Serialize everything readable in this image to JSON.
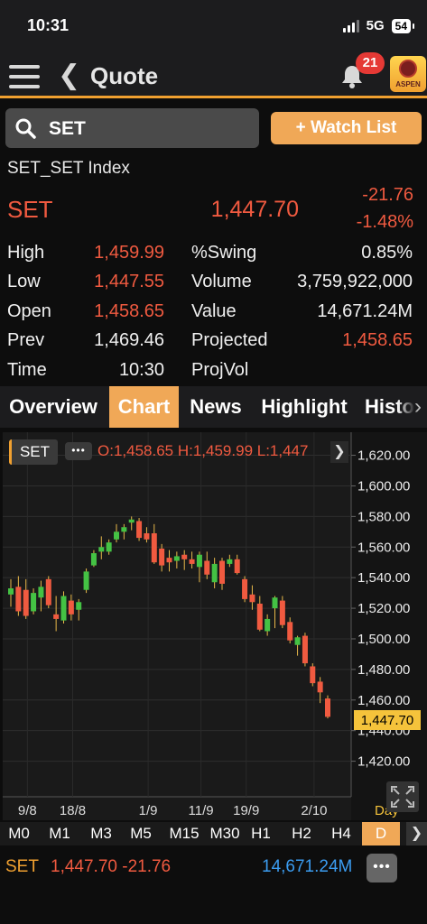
{
  "status_bar": {
    "time": "10:31",
    "network": "5G",
    "battery": "54"
  },
  "nav": {
    "title": "Quote",
    "notification_count": "21",
    "logo_text": "ASPEN"
  },
  "search": {
    "value": "SET"
  },
  "watchlist_label": "+ Watch List",
  "quote": {
    "index_name": "SET_SET Index",
    "symbol": "SET",
    "last": "1,447.70",
    "change": "-21.76",
    "change_pct": "-1.48%",
    "high_label": "High",
    "high": "1,459.99",
    "low_label": "Low",
    "low": "1,447.55",
    "open_label": "Open",
    "open": "1,458.65",
    "prev_label": "Prev",
    "prev": "1,469.46",
    "time_label": "Time",
    "time": "10:30",
    "swing_label": "%Swing",
    "swing": "0.85%",
    "volume_label": "Volume",
    "volume": "3,759,922,000",
    "value_label": "Value",
    "value": "14,671.24M",
    "projected_label": "Projected",
    "projected": "1,458.65",
    "projvol_label": "ProjVol"
  },
  "tabs": [
    "Overview",
    "Chart",
    "News",
    "Highlight",
    "Histor"
  ],
  "chart_header": {
    "symbol": "SET",
    "ohl": "O:1,458.65  H:1,459.99  L:1,447"
  },
  "chart_data": {
    "type": "candlestick",
    "y_ticks": [
      "1,620.00",
      "1,600.00",
      "1,580.00",
      "1,560.00",
      "1,540.00",
      "1,520.00",
      "1,500.00",
      "1,480.00",
      "1,460.00",
      "1,440.00",
      "1,420.00"
    ],
    "x_ticks": [
      "9/8",
      "18/8",
      "1/9",
      "11/9",
      "19/9",
      "2/10"
    ],
    "x_unit": "Day",
    "ylim": [
      1405,
      1628
    ],
    "last_label": "1,447.70",
    "candles": [
      {
        "o": 1529,
        "h": 1539,
        "l": 1521,
        "c": 1533
      },
      {
        "o": 1534,
        "h": 1541,
        "l": 1515,
        "c": 1518
      },
      {
        "o": 1532,
        "h": 1539,
        "l": 1513,
        "c": 1515
      },
      {
        "o": 1518,
        "h": 1533,
        "l": 1516,
        "c": 1530
      },
      {
        "o": 1527,
        "h": 1538,
        "l": 1518,
        "c": 1534
      },
      {
        "o": 1539,
        "h": 1541,
        "l": 1520,
        "c": 1522
      },
      {
        "o": 1516,
        "h": 1528,
        "l": 1505,
        "c": 1513
      },
      {
        "o": 1512,
        "h": 1531,
        "l": 1510,
        "c": 1528
      },
      {
        "o": 1525,
        "h": 1529,
        "l": 1512,
        "c": 1516
      },
      {
        "o": 1519,
        "h": 1526,
        "l": 1512,
        "c": 1524
      },
      {
        "o": 1532,
        "h": 1546,
        "l": 1530,
        "c": 1544
      },
      {
        "o": 1548,
        "h": 1558,
        "l": 1547,
        "c": 1556
      },
      {
        "o": 1557,
        "h": 1567,
        "l": 1552,
        "c": 1560
      },
      {
        "o": 1557,
        "h": 1565,
        "l": 1555,
        "c": 1563
      },
      {
        "o": 1565,
        "h": 1575,
        "l": 1563,
        "c": 1570
      },
      {
        "o": 1570,
        "h": 1575,
        "l": 1565,
        "c": 1573
      },
      {
        "o": 1576,
        "h": 1580,
        "l": 1571,
        "c": 1578
      },
      {
        "o": 1577,
        "h": 1579,
        "l": 1564,
        "c": 1566
      },
      {
        "o": 1569,
        "h": 1573,
        "l": 1563,
        "c": 1565
      },
      {
        "o": 1569,
        "h": 1575,
        "l": 1549,
        "c": 1550
      },
      {
        "o": 1559,
        "h": 1562,
        "l": 1544,
        "c": 1548
      },
      {
        "o": 1553,
        "h": 1558,
        "l": 1544,
        "c": 1550
      },
      {
        "o": 1551,
        "h": 1557,
        "l": 1546,
        "c": 1554
      },
      {
        "o": 1555,
        "h": 1558,
        "l": 1545,
        "c": 1552
      },
      {
        "o": 1552,
        "h": 1557,
        "l": 1546,
        "c": 1549
      },
      {
        "o": 1547,
        "h": 1557,
        "l": 1537,
        "c": 1555
      },
      {
        "o": 1551,
        "h": 1557,
        "l": 1539,
        "c": 1542
      },
      {
        "o": 1537,
        "h": 1553,
        "l": 1533,
        "c": 1549
      },
      {
        "o": 1551,
        "h": 1553,
        "l": 1532,
        "c": 1536
      },
      {
        "o": 1549,
        "h": 1555,
        "l": 1547,
        "c": 1552
      },
      {
        "o": 1552,
        "h": 1555,
        "l": 1542,
        "c": 1543
      },
      {
        "o": 1539,
        "h": 1541,
        "l": 1524,
        "c": 1526
      },
      {
        "o": 1529,
        "h": 1535,
        "l": 1519,
        "c": 1524
      },
      {
        "o": 1523,
        "h": 1528,
        "l": 1505,
        "c": 1506
      },
      {
        "o": 1505,
        "h": 1516,
        "l": 1502,
        "c": 1513
      },
      {
        "o": 1520,
        "h": 1528,
        "l": 1507,
        "c": 1527
      },
      {
        "o": 1525,
        "h": 1528,
        "l": 1507,
        "c": 1509
      },
      {
        "o": 1511,
        "h": 1514,
        "l": 1497,
        "c": 1499
      },
      {
        "o": 1496,
        "h": 1502,
        "l": 1489,
        "c": 1501
      },
      {
        "o": 1502,
        "h": 1504,
        "l": 1482,
        "c": 1484
      },
      {
        "o": 1482,
        "h": 1484,
        "l": 1469,
        "c": 1471
      },
      {
        "o": 1472,
        "h": 1475,
        "l": 1458,
        "c": 1465
      },
      {
        "o": 1461,
        "h": 1463,
        "l": 1448,
        "c": 1449
      }
    ]
  },
  "periods": [
    "M0",
    "M1",
    "M3",
    "M5",
    "M15",
    "M30",
    "H1",
    "H2",
    "H4",
    "D"
  ],
  "footer": {
    "symbol": "SET",
    "price_change": "1,447.70 -21.76",
    "value": "14,671.24M"
  },
  "colors": {
    "up": "#44c244",
    "down": "#f05a40",
    "accent": "#f0a857",
    "value_blue": "#3b9cf0"
  }
}
